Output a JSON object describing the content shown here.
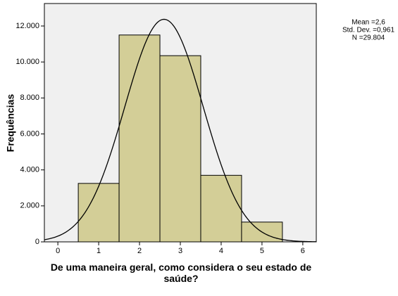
{
  "chart_data": {
    "type": "histogram",
    "xlabel": "De uma maneira geral, como considera o seu estado de saúde?",
    "ylabel": "Frequências",
    "bins": [
      0.5,
      1.5,
      2.5,
      3.5,
      4.5,
      5.5
    ],
    "values": [
      3250,
      11500,
      10350,
      3700,
      1100
    ],
    "color": "#d3ce97",
    "xlim": [
      -0.33,
      6.33
    ],
    "xticks": [
      0,
      1,
      2,
      3,
      4,
      5,
      6
    ],
    "ylim": [
      0,
      13250
    ],
    "yticks": [
      0,
      {
        "value": 2000,
        "label": "2.000"
      },
      {
        "value": 4000,
        "label": "4.000"
      },
      {
        "value": 6000,
        "label": "6.000"
      },
      {
        "value": 8000,
        "label": "8.000"
      },
      {
        "value": 10000,
        "label": "10.000"
      },
      {
        "value": 12000,
        "label": "12.000"
      }
    ],
    "annotations": [
      {
        "value": 2.6,
        "label": "Mean =2,6"
      },
      {
        "value": 0.961,
        "label": "Std. Dev. =0,961"
      },
      {
        "value": 29804,
        "label": "N =29.804"
      }
    ],
    "normal_curve": true
  }
}
